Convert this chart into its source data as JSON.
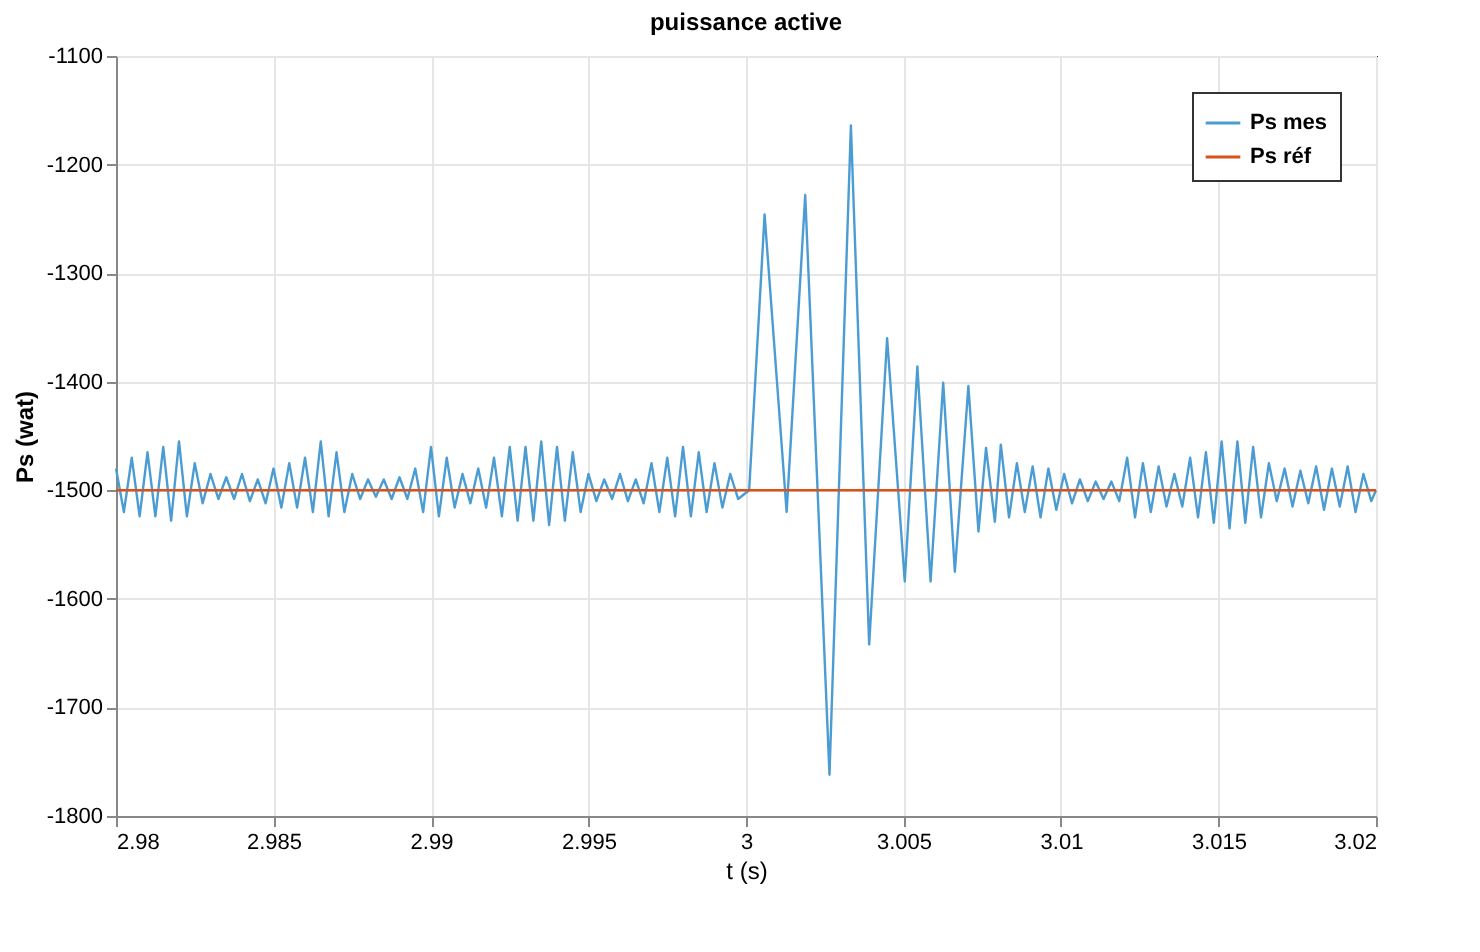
{
  "chart_data": {
    "type": "line",
    "title": "puissance active",
    "xlabel": "t (s)",
    "ylabel": "Ps (wat)",
    "xlim": [
      2.98,
      3.02
    ],
    "xticks": [
      2.98,
      2.985,
      2.99,
      2.995,
      3,
      3.005,
      3.01,
      3.015,
      3.02
    ],
    "ylim": [
      -1800,
      -1100
    ],
    "yticks": [
      -1800,
      -1700,
      -1600,
      -1500,
      -1400,
      -1300,
      -1200,
      -1100
    ],
    "grid": true,
    "legend": "top right",
    "marker": "none",
    "line_style": "solid",
    "series": [
      {
        "name": "Ps mes",
        "color": "#4b9cd3",
        "x": [
          2.98,
          2.98025,
          2.9805,
          2.98075,
          2.981,
          2.98125,
          2.9815,
          2.98175,
          2.982,
          2.98225,
          2.9825,
          2.98275,
          2.983,
          2.98325,
          2.9835,
          2.98375,
          2.984,
          2.98425,
          2.9845,
          2.98475,
          2.985,
          2.98525,
          2.9855,
          2.98575,
          2.986,
          2.98625,
          2.9865,
          2.98675,
          2.987,
          2.98725,
          2.9875,
          2.98775,
          2.988,
          2.98825,
          2.9885,
          2.98875,
          2.989,
          2.98925,
          2.9895,
          2.98975,
          2.99,
          2.99025,
          2.9905,
          2.99075,
          2.991,
          2.99125,
          2.9915,
          2.99175,
          2.992,
          2.99225,
          2.9925,
          2.99275,
          2.993,
          2.99325,
          2.9935,
          2.99375,
          2.994,
          2.99425,
          2.9945,
          2.99475,
          2.995,
          2.99525,
          2.9955,
          2.99575,
          2.996,
          2.99625,
          2.9965,
          2.99675,
          2.997,
          2.99725,
          2.9975,
          2.99775,
          2.998,
          2.99825,
          2.9985,
          2.99875,
          2.999,
          2.99925,
          2.9995,
          2.99975,
          3.0001,
          3.00059,
          3.00129,
          3.00188,
          3.00265,
          3.00333,
          3.00391,
          3.00448,
          3.00504,
          3.00544,
          3.00586,
          3.00626,
          3.00663,
          3.00706,
          3.00738,
          3.00762,
          3.0079,
          3.00809,
          3.00835,
          3.0086,
          3.00885,
          3.0091,
          3.00935,
          3.0096,
          3.00985,
          3.0101,
          3.01035,
          3.0106,
          3.01085,
          3.0111,
          3.01135,
          3.0116,
          3.01185,
          3.0121,
          3.01235,
          3.0126,
          3.01285,
          3.0131,
          3.01335,
          3.0136,
          3.01385,
          3.0141,
          3.01435,
          3.0146,
          3.01485,
          3.0151,
          3.01535,
          3.0156,
          3.01585,
          3.0161,
          3.01635,
          3.0166,
          3.01685,
          3.0171,
          3.01735,
          3.0176,
          3.01785,
          3.0181,
          3.01835,
          3.0186,
          3.01885,
          3.0191,
          3.01935,
          3.0196,
          3.01985,
          3.02
        ],
        "values": [
          -1480,
          -1520,
          -1470,
          -1524,
          -1465,
          -1524,
          -1460,
          -1528,
          -1455,
          -1524,
          -1475,
          -1512,
          -1485,
          -1508,
          -1488,
          -1508,
          -1485,
          -1510,
          -1490,
          -1512,
          -1480,
          -1516,
          -1475,
          -1516,
          -1470,
          -1520,
          -1455,
          -1524,
          -1465,
          -1520,
          -1485,
          -1508,
          -1490,
          -1506,
          -1490,
          -1508,
          -1488,
          -1508,
          -1480,
          -1520,
          -1460,
          -1524,
          -1470,
          -1516,
          -1485,
          -1512,
          -1480,
          -1516,
          -1470,
          -1524,
          -1460,
          -1528,
          -1460,
          -1528,
          -1455,
          -1532,
          -1460,
          -1528,
          -1465,
          -1520,
          -1485,
          -1510,
          -1490,
          -1508,
          -1485,
          -1510,
          -1490,
          -1512,
          -1475,
          -1520,
          -1470,
          -1524,
          -1460,
          -1524,
          -1465,
          -1520,
          -1475,
          -1516,
          -1485,
          -1508,
          -1500,
          -1246,
          -1520,
          -1228,
          -1762,
          -1164,
          -1642,
          -1360,
          -1584,
          -1386,
          -1584,
          -1401,
          -1575,
          -1404,
          -1538,
          -1461,
          -1529,
          -1458,
          -1525,
          -1475,
          -1520,
          -1478,
          -1525,
          -1480,
          -1518,
          -1485,
          -1512,
          -1490,
          -1510,
          -1492,
          -1508,
          -1492,
          -1510,
          -1470,
          -1525,
          -1475,
          -1520,
          -1478,
          -1515,
          -1485,
          -1515,
          -1470,
          -1525,
          -1465,
          -1530,
          -1455,
          -1535,
          -1455,
          -1530,
          -1460,
          -1525,
          -1475,
          -1510,
          -1480,
          -1515,
          -1482,
          -1512,
          -1478,
          -1518,
          -1480,
          -1515,
          -1478,
          -1520,
          -1485,
          -1510,
          -1500
        ]
      },
      {
        "name": "Ps réf",
        "color": "#d95319",
        "x": [
          2.98,
          3.02
        ],
        "values": [
          -1500,
          -1500
        ]
      }
    ]
  }
}
